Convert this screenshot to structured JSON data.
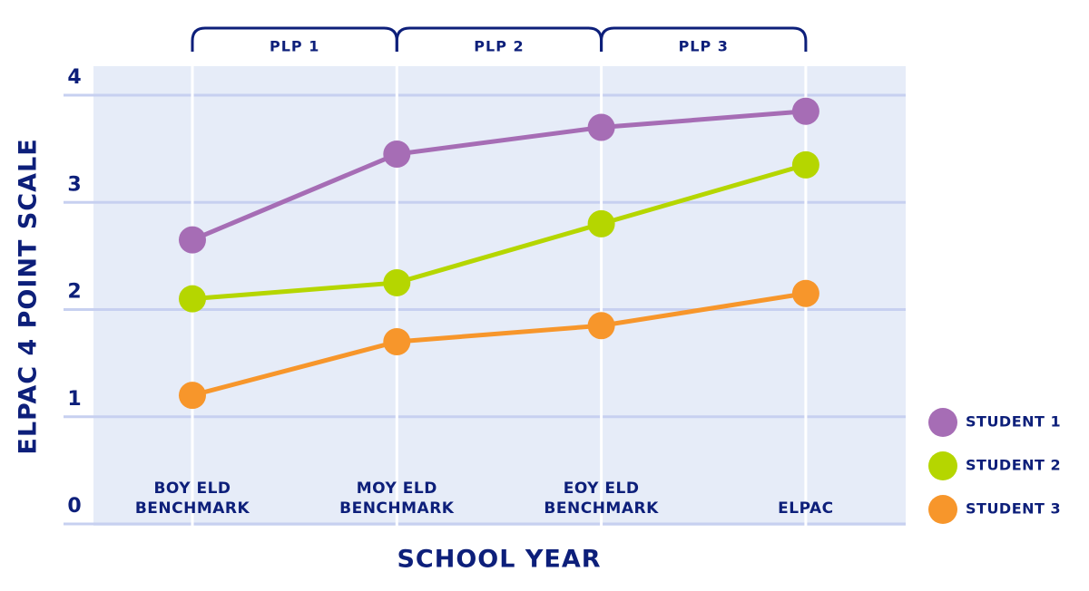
{
  "chart_data": {
    "type": "line",
    "y_axis_label": "ELPAC 4 POINT SCALE",
    "x_axis_label": "SCHOOL YEAR",
    "categories": [
      "BOY ELD BENCHMARK",
      "MOY ELD BENCHMARK",
      "EOY ELD BENCHMARK",
      "ELPAC"
    ],
    "brackets": [
      "PLP 1",
      "PLP 2",
      "PLP 3"
    ],
    "series": [
      {
        "name": "STUDENT 1",
        "color": "#a66db5",
        "values": [
          2.65,
          3.45,
          3.7,
          3.85
        ]
      },
      {
        "name": "STUDENT 2",
        "color": "#b5d600",
        "values": [
          2.1,
          2.25,
          2.8,
          3.35
        ]
      },
      {
        "name": "STUDENT 3",
        "color": "#f7962b",
        "values": [
          1.2,
          1.7,
          1.85,
          2.15
        ]
      }
    ],
    "ylim": [
      0,
      4
    ],
    "yticks": [
      0,
      1,
      2,
      3,
      4
    ],
    "grid": true,
    "legend": "right"
  }
}
